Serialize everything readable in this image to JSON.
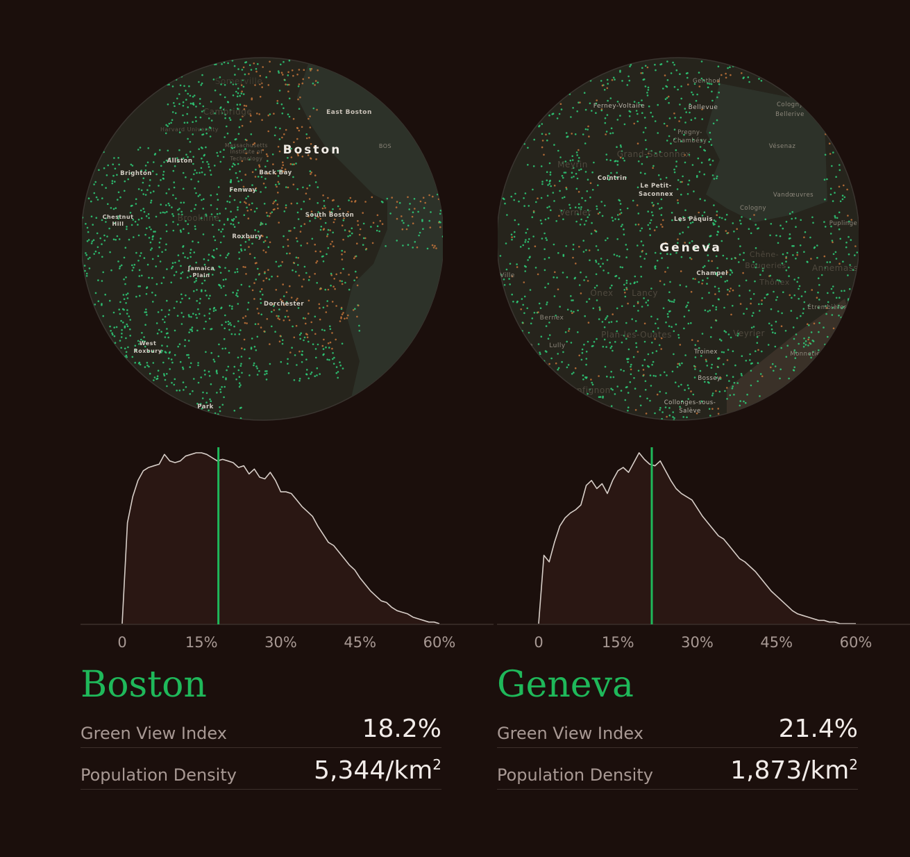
{
  "colors": {
    "background": "#1b0f0c",
    "green": "#1fb85a",
    "map_fill": "#26241c",
    "water": "#2d3229",
    "curve": "#d8cfc9",
    "dot_green": "#2fd07a",
    "dot_orange": "#c4743a"
  },
  "cities": [
    {
      "name": "Boston",
      "map_labels": {
        "l01": "Somerville",
        "l02": "Cambridge",
        "l03": "East Boston",
        "l04": "Harvard University",
        "l05": "Massachusetts",
        "l06": "Institute of",
        "l07": "Technology",
        "l08": "Boston",
        "l09": "BOS",
        "l10": "Allston",
        "l11": "Brighton",
        "l12": "Back Bay",
        "l13": "Fenway",
        "l14": "Chestnut",
        "l15": "Hill",
        "l16": "Brookline",
        "l17": "South Boston",
        "l18": "Roxbury",
        "l19": "Jamaica",
        "l20": "Plain",
        "l21": "Dorchester",
        "l22": "West",
        "l23": "Roxbury",
        "l24": "Park"
      },
      "marker_value": 18.2,
      "stats": {
        "green_view_label": "Green View Index",
        "green_view_value": "18.2%",
        "density_label": "Population Density",
        "density_value": "5,344/km",
        "density_sup": "2"
      }
    },
    {
      "name": "Geneva",
      "map_labels": {
        "l01": "Genthod",
        "l02": "Ferney-Voltaire",
        "l03": "Bellevue",
        "l04": "Cologny",
        "l05": "Bellerive",
        "l06": "Pregny-",
        "l07": "Chambésy",
        "l08": "Vésenaz",
        "l09": "Grand-Saconnex",
        "l10": "Meyrin",
        "l11": "Cointrin",
        "l12": "Le Petit-",
        "l13": "Saconnex",
        "l14": "Vandœuvres",
        "l15": "Cologny",
        "l16": "Vernier",
        "l17": "Les Pâquis",
        "l18": "Puplinge",
        "l19": "Geneva",
        "l20": "Chêne-",
        "l21": "Bougeries",
        "l22": "Thônex",
        "l23": "Annemasse",
        "l24": "Ville",
        "l25": "Champel",
        "l26": "Onex",
        "l27": "Lancy",
        "l28": "Étrembières",
        "l29": "Bernex",
        "l30": "Lully",
        "l31": "Plan-les-Ouates",
        "l32": "Veyrier",
        "l33": "Troinex",
        "l34": "Monnetier",
        "l35": "Bossey",
        "l36": "Collonges-sous-",
        "l37": "Salève",
        "l38": "Confignon",
        "l39": "ve"
      },
      "marker_value": 21.4,
      "stats": {
        "green_view_label": "Green View Index",
        "green_view_value": "21.4%",
        "density_label": "Population Density",
        "density_value": "1,873/km",
        "density_sup": "2"
      }
    }
  ],
  "chart_data": [
    {
      "type": "area",
      "x_ticks": [
        "0",
        "15%",
        "30%",
        "45%",
        "60%"
      ],
      "xlim": [
        0,
        60
      ],
      "marker": 18.2,
      "x": [
        0,
        1,
        2,
        3,
        4,
        5,
        6,
        7,
        8,
        9,
        10,
        11,
        12,
        13,
        14,
        15,
        16,
        17,
        18,
        19,
        20,
        21,
        22,
        23,
        24,
        25,
        26,
        27,
        28,
        29,
        30,
        31,
        32,
        33,
        34,
        35,
        36,
        37,
        38,
        39,
        40,
        41,
        42,
        43,
        44,
        45,
        46,
        47,
        48,
        49,
        50,
        51,
        52,
        53,
        54,
        55,
        56,
        57,
        58,
        59,
        60
      ],
      "y": [
        0,
        62,
        78,
        88,
        94,
        96,
        97,
        98,
        104,
        100,
        99,
        100,
        103,
        104,
        105,
        105,
        104,
        102,
        100,
        101,
        100,
        99,
        96,
        97,
        92,
        95,
        90,
        89,
        93,
        88,
        81,
        81,
        80,
        76,
        72,
        69,
        66,
        60,
        55,
        50,
        48,
        44,
        40,
        36,
        33,
        28,
        24,
        20,
        17,
        14,
        13,
        10,
        8,
        7,
        6,
        4,
        3,
        2,
        1,
        1,
        0
      ]
    },
    {
      "type": "area",
      "x_ticks": [
        "0",
        "15%",
        "30%",
        "45%",
        "60%"
      ],
      "xlim": [
        0,
        60
      ],
      "marker": 21.4,
      "x": [
        0,
        1,
        2,
        3,
        4,
        5,
        6,
        7,
        8,
        9,
        10,
        11,
        12,
        13,
        14,
        15,
        16,
        17,
        18,
        19,
        20,
        21,
        22,
        23,
        24,
        25,
        26,
        27,
        28,
        29,
        30,
        31,
        32,
        33,
        34,
        35,
        36,
        37,
        38,
        39,
        40,
        41,
        42,
        43,
        44,
        45,
        46,
        47,
        48,
        49,
        50,
        51,
        52,
        53,
        54,
        55,
        56,
        57,
        58,
        59,
        60
      ],
      "y": [
        0,
        42,
        38,
        50,
        60,
        65,
        68,
        70,
        73,
        85,
        88,
        83,
        86,
        80,
        88,
        94,
        96,
        93,
        99,
        105,
        101,
        98,
        97,
        100,
        94,
        88,
        83,
        80,
        78,
        76,
        71,
        66,
        62,
        58,
        54,
        52,
        48,
        44,
        40,
        38,
        35,
        32,
        28,
        24,
        20,
        17,
        14,
        11,
        8,
        6,
        5,
        4,
        3,
        2,
        2,
        1,
        1,
        0,
        0,
        0,
        0
      ]
    }
  ]
}
